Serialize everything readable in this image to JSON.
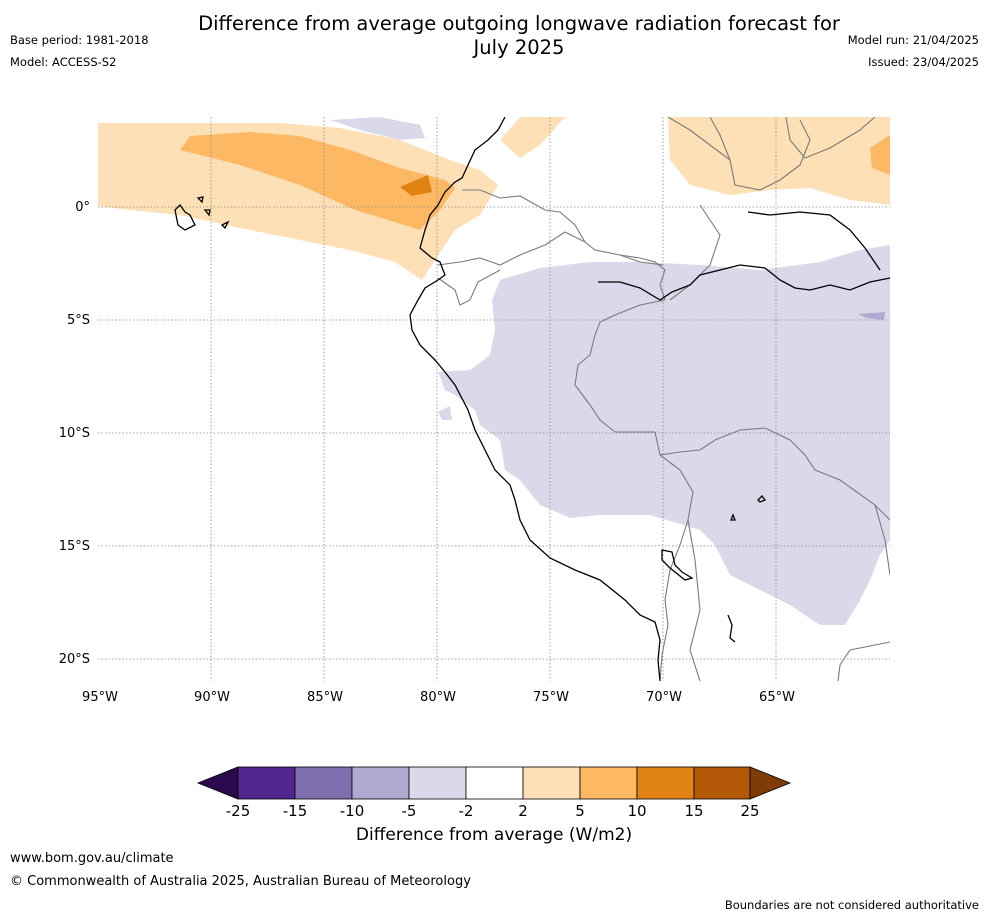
{
  "title_line1": "Difference from average outgoing longwave radiation forecast for",
  "title_line2": "July 2025",
  "meta_left": {
    "base_period": "Base period: 1981-2018",
    "model": "Model: ACCESS-S2"
  },
  "meta_right": {
    "model_run": "Model run: 21/04/2025",
    "issued": "Issued: 23/04/2025"
  },
  "map": {
    "lon_labels": [
      "95°W",
      "90°W",
      "85°W",
      "80°W",
      "75°W",
      "70°W",
      "65°W"
    ],
    "lat_labels": [
      "0°",
      "5°S",
      "10°S",
      "15°S",
      "20°S"
    ],
    "land_line_color": "#000000",
    "border_color": "#7a7a7a",
    "gridline_style": "dotted"
  },
  "colorbar": {
    "title": "Difference from average (W/m2)",
    "ticks": [
      "-25",
      "-15",
      "-10",
      "-5",
      "-2",
      "2",
      "5",
      "10",
      "15",
      "25"
    ],
    "colors": [
      "#2d0a4e",
      "#54278f",
      "#7f6fae",
      "#b1a9d1",
      "#d9d9ea",
      "#ffffff",
      "#fee0b6",
      "#fdb863",
      "#e08214",
      "#b35806",
      "#7f3b08"
    ]
  },
  "footer": {
    "url": "www.bom.gov.au/climate",
    "copyright": "© Commonwealth of Australia 2025, Australian Bureau of Meteorology",
    "note": "Boundaries are not considered authoritative"
  }
}
